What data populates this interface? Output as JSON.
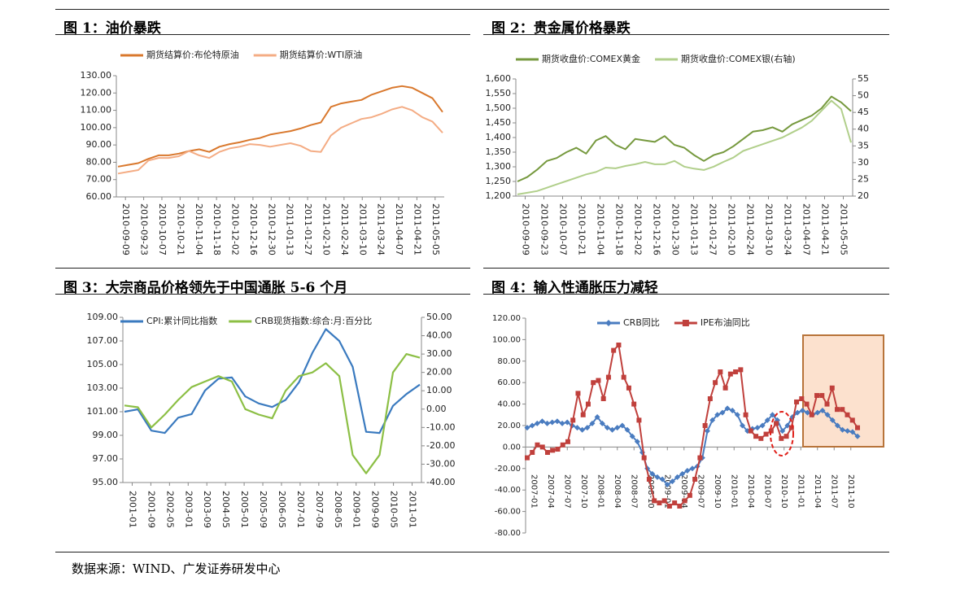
{
  "figures": {
    "fig1_title": "图 1：油价暴跌",
    "fig2_title": "图 2：贵金属价格暴跌",
    "fig3_title": "图 3：大宗商品价格领先于中国通胀 5-6 个月",
    "fig4_title": "图 4：输入性通胀压力减轻"
  },
  "source": "数据来源：WIND、广发证券研发中心",
  "chart_data": [
    {
      "type": "line",
      "x_ticks": [
        "2010-09-09",
        "2010-09-23",
        "2010-10-07",
        "2010-10-21",
        "2010-11-04",
        "2010-11-18",
        "2010-12-02",
        "2010-12-16",
        "2010-12-30",
        "2011-01-13",
        "2011-01-27",
        "2011-02-10",
        "2011-02-24",
        "2011-03-10",
        "2011-03-24",
        "2011-04-07",
        "2011-04-21",
        "2011-05-05"
      ],
      "ylim": [
        60,
        130
      ],
      "y_ticks": [
        "130.00",
        "120.00",
        "110.00",
        "100.00",
        "90.00",
        "80.00",
        "70.00",
        "60.00"
      ],
      "grid": false,
      "legend_position": "top",
      "series": [
        {
          "name": "期货结算价:布伦特原油",
          "color": "#d9782d",
          "values": [
            77.5,
            78.5,
            79.5,
            82,
            84,
            84,
            85,
            86.5,
            87.5,
            86,
            89,
            90.5,
            91.5,
            93,
            94,
            96,
            97,
            98,
            99.5,
            101.5,
            103,
            112,
            114,
            115,
            116,
            119,
            121,
            123,
            124,
            123,
            120,
            117,
            109
          ]
        },
        {
          "name": "期货结算价:WTI原油",
          "color": "#f4ac84",
          "values": [
            73.5,
            74.5,
            75.5,
            81,
            82.5,
            82.5,
            83.5,
            86.5,
            84,
            82.5,
            86,
            88,
            89,
            90.5,
            90,
            89,
            90,
            91,
            89.5,
            86.5,
            86,
            95.5,
            100,
            102.5,
            105,
            106,
            108,
            110.5,
            112,
            110,
            106,
            103.5,
            97
          ]
        }
      ]
    },
    {
      "type": "line",
      "x_ticks": [
        "2010-09-09",
        "2010-09-23",
        "2010-10-07",
        "2010-10-21",
        "2010-11-04",
        "2010-11-18",
        "2010-12-02",
        "2010-12-16",
        "2010-12-30",
        "2011-01-13",
        "2011-01-27",
        "2011-02-10",
        "2011-02-24",
        "2011-03-10",
        "2011-03-24",
        "2011-04-07",
        "2011-04-21",
        "2011-05-05"
      ],
      "ylim": [
        1200,
        1600
      ],
      "y_ticks": [
        "1,600",
        "1,550",
        "1,500",
        "1,450",
        "1,400",
        "1,350",
        "1,300",
        "1,250",
        "1,200"
      ],
      "y2lim": [
        20,
        55
      ],
      "y2_ticks": [
        "55",
        "50",
        "45",
        "40",
        "35",
        "30",
        "25",
        "20"
      ],
      "grid": false,
      "legend_position": "top",
      "series": [
        {
          "name": "期货收盘价:COMEX黄金",
          "color": "#76993e",
          "axis": "left",
          "values": [
            1250,
            1265,
            1290,
            1320,
            1330,
            1350,
            1365,
            1345,
            1390,
            1405,
            1375,
            1360,
            1395,
            1390,
            1385,
            1405,
            1375,
            1365,
            1340,
            1320,
            1340,
            1350,
            1370,
            1395,
            1420,
            1425,
            1435,
            1420,
            1445,
            1460,
            1475,
            1500,
            1540,
            1520,
            1490
          ]
        },
        {
          "name": "期货收盘价:COMEX银(右轴)",
          "color": "#b1cf8b",
          "axis": "right",
          "values": [
            20.5,
            21,
            21.5,
            22.5,
            23.5,
            24.5,
            25.5,
            26.5,
            27.2,
            28.5,
            28.3,
            29,
            29.5,
            30.2,
            29.5,
            29.5,
            30.5,
            28.8,
            28.2,
            27.8,
            28.8,
            30.2,
            31.5,
            33.5,
            34.5,
            35.5,
            36.5,
            37.5,
            39,
            40.5,
            42.5,
            45.5,
            48.5,
            46,
            36
          ]
        }
      ]
    },
    {
      "type": "line",
      "x_ticks": [
        "2001-01",
        "2001-09",
        "2002-05",
        "2003-01",
        "2003-09",
        "2004-05",
        "2005-01",
        "2005-09",
        "2006-05",
        "2007-01",
        "2007-09",
        "2008-05",
        "2009-01",
        "2009-09",
        "2010-05",
        "2011-01"
      ],
      "ylim": [
        95,
        109
      ],
      "y_ticks": [
        "109.00",
        "107.00",
        "105.00",
        "103.00",
        "101.00",
        "99.00",
        "97.00",
        "95.00"
      ],
      "y2lim": [
        -40,
        50
      ],
      "y2_ticks": [
        "50.00",
        "40.00",
        "30.00",
        "20.00",
        "10.00",
        "0.00",
        "-10.00",
        "-20.00",
        "-30.00",
        "-40.00"
      ],
      "grid": false,
      "legend_position": "top",
      "series": [
        {
          "name": "CPI:累计同比指数",
          "color": "#3a7abf",
          "axis": "left",
          "values": [
            101,
            101.2,
            99.4,
            99.2,
            100.5,
            100.8,
            102.8,
            103.8,
            103.9,
            102.3,
            101.7,
            101.4,
            102,
            103.5,
            106,
            108,
            107,
            104.8,
            99.3,
            99.2,
            101.5,
            102.5,
            103.3
          ]
        },
        {
          "name": "CRB现货指数:综合:月:百分比",
          "color": "#8cbf45",
          "axis": "right",
          "values": [
            2,
            1,
            -10,
            -3,
            5,
            12,
            15,
            18,
            15,
            0,
            -3,
            -5,
            10,
            18,
            20,
            25,
            18,
            -25,
            -35,
            -25,
            20,
            30,
            28
          ]
        }
      ]
    },
    {
      "type": "line",
      "x_ticks": [
        "2007-01",
        "2007-04",
        "2007-07",
        "2007-10",
        "2008-01",
        "2008-04",
        "2008-07",
        "2008-10",
        "2009-01",
        "2009-04",
        "2009-07",
        "2009-10",
        "2010-01",
        "2010-04",
        "2010-07",
        "2010-10",
        "2011-01",
        "2011-04",
        "2011-07",
        "2011-10"
      ],
      "ylim": [
        -80,
        120
      ],
      "y_ticks": [
        "120.00",
        "100.00",
        "80.00",
        "60.00",
        "40.00",
        "20.00",
        "0.00",
        "-20.00",
        "-40.00",
        "-60.00",
        "-80.00"
      ],
      "grid": false,
      "legend_position": "top",
      "annotations": [
        "dashed red ellipse near 2010-10 to 2011-01",
        "shaded highlight box from 2011-01 to 2011-12"
      ],
      "series": [
        {
          "name": "CRB同比",
          "color": "#4a7cc0",
          "marker": "diamond",
          "values": [
            18,
            20,
            22,
            24,
            22,
            23,
            24,
            22,
            23,
            20,
            18,
            16,
            18,
            22,
            28,
            22,
            18,
            16,
            18,
            20,
            16,
            10,
            5,
            -5,
            -20,
            -25,
            -28,
            -30,
            -35,
            -32,
            -28,
            -25,
            -22,
            -20,
            -18,
            -10,
            15,
            25,
            30,
            32,
            36,
            34,
            30,
            20,
            15,
            17,
            18,
            20,
            25,
            30,
            25,
            15,
            20,
            28,
            32,
            34,
            32,
            30,
            32,
            34,
            30,
            25,
            20,
            16,
            15,
            14,
            10
          ]
        },
        {
          "name": "IPE布油同比",
          "color": "#c0403c",
          "marker": "square",
          "values": [
            -10,
            -5,
            2,
            0,
            -5,
            -3,
            -2,
            2,
            5,
            25,
            50,
            30,
            40,
            60,
            62,
            45,
            65,
            90,
            95,
            65,
            55,
            40,
            25,
            -10,
            -30,
            -50,
            -52,
            -50,
            -55,
            -52,
            -55,
            -50,
            -45,
            -30,
            -10,
            20,
            45,
            60,
            70,
            55,
            68,
            70,
            72,
            30,
            15,
            10,
            8,
            12,
            15,
            22,
            8,
            10,
            18,
            42,
            45,
            40,
            30,
            48,
            48,
            40,
            55,
            35,
            35,
            30,
            25,
            18
          ]
        }
      ]
    }
  ]
}
